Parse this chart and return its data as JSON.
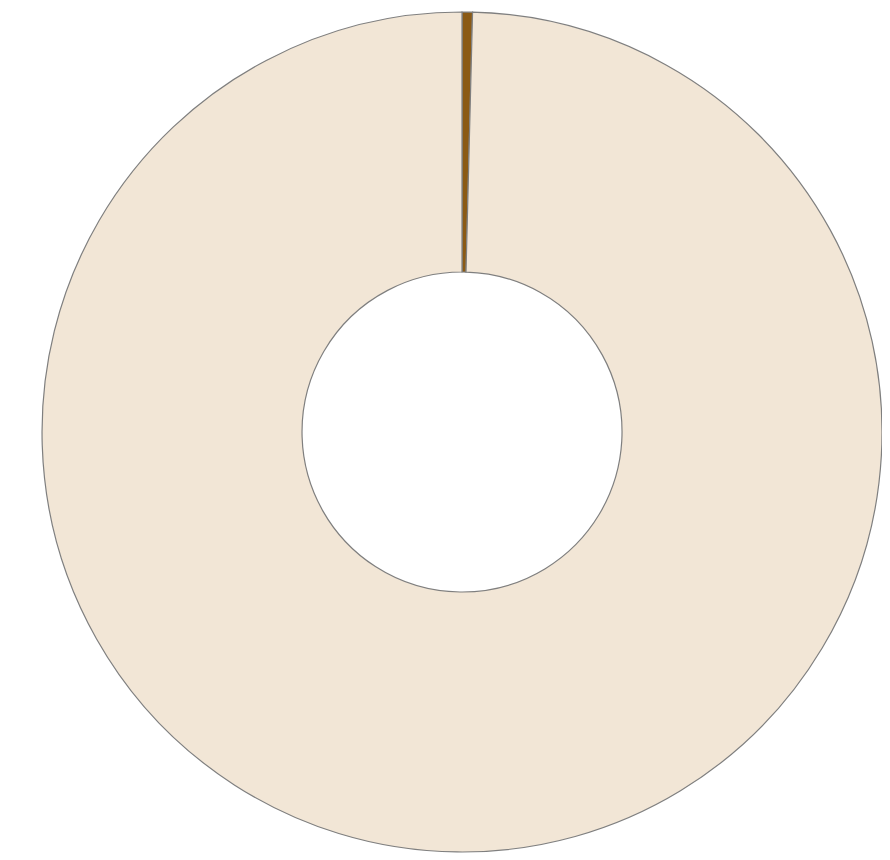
{
  "chart_data": {
    "type": "donut",
    "categories": [
      null,
      null
    ],
    "values": [
      0.4,
      99.6
    ],
    "colors": [
      "#8b5a14",
      "#f2e6d6"
    ]
  }
}
